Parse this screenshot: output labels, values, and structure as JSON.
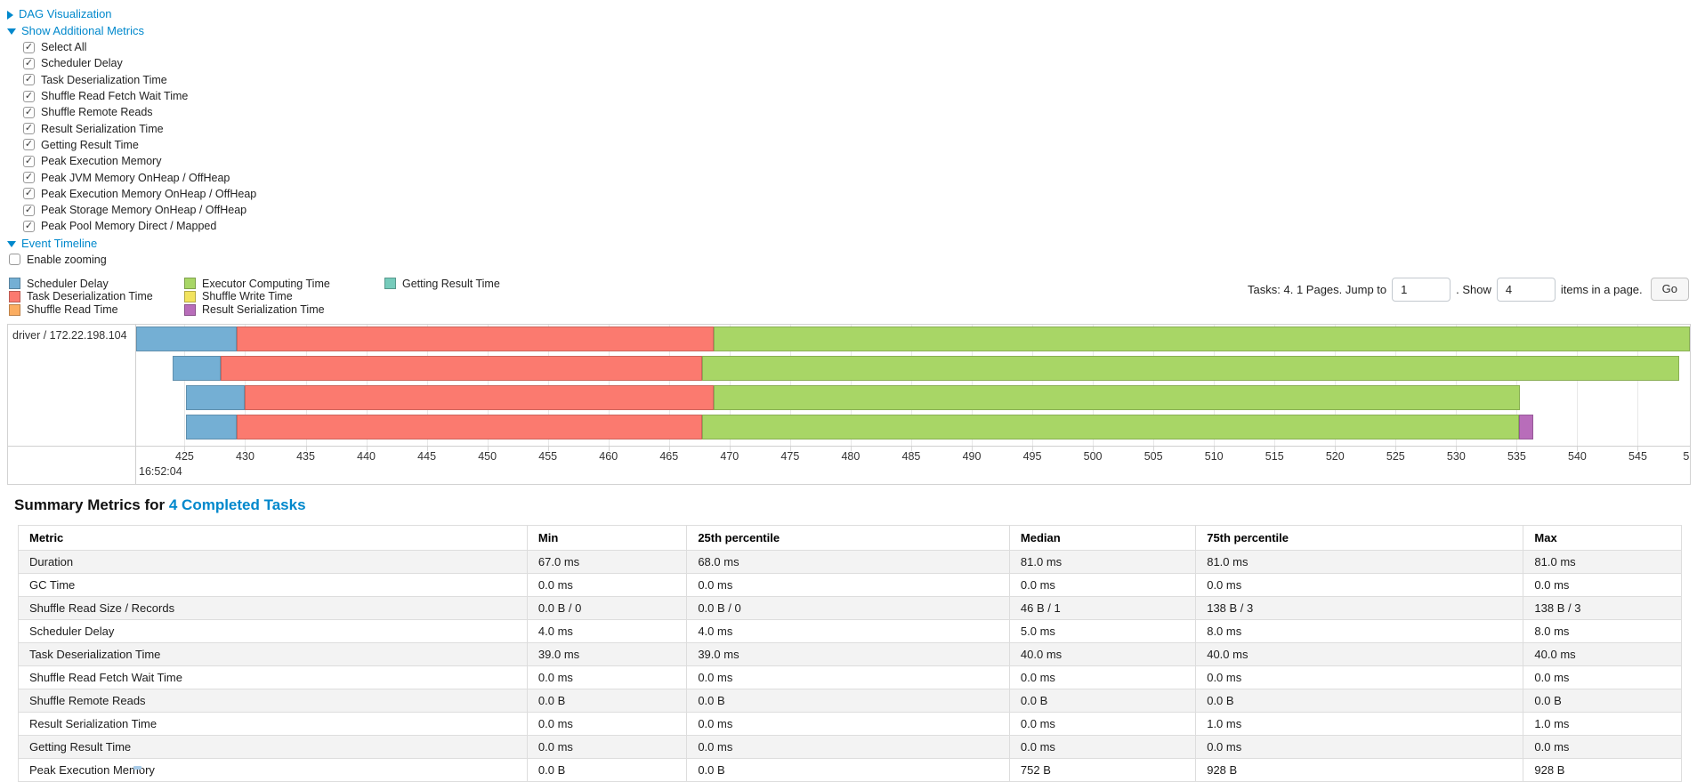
{
  "controls": {
    "dag": {
      "label": "DAG Visualization",
      "state": "collapsed"
    },
    "additional_metrics": {
      "label": "Show Additional Metrics",
      "state": "expanded"
    },
    "metric_checkboxes": [
      "Select All",
      "Scheduler Delay",
      "Task Deserialization Time",
      "Shuffle Read Fetch Wait Time",
      "Shuffle Remote Reads",
      "Result Serialization Time",
      "Getting Result Time",
      "Peak Execution Memory",
      "Peak JVM Memory OnHeap / OffHeap",
      "Peak Execution Memory OnHeap / OffHeap",
      "Peak Storage Memory OnHeap / OffHeap",
      "Peak Pool Memory Direct / Mapped"
    ],
    "event_timeline": {
      "label": "Event Timeline",
      "state": "expanded"
    },
    "enable_zooming": {
      "label": "Enable zooming",
      "checked": false
    }
  },
  "pagination": {
    "prefix": "Tasks: 4. 1 Pages. Jump to",
    "jump_value": "1",
    "mid": ". Show",
    "show_value": "4",
    "suffix": "items in a page.",
    "go_label": "Go"
  },
  "colors": {
    "link": "#0088cc",
    "series": {
      "scheduler_delay": "#74AFD4",
      "task_deserialization": "#FB7A6F",
      "shuffle_read": "#FBAD61",
      "executor_computing": "#A8D666",
      "shuffle_write": "#F2E35E",
      "result_serialization": "#B86DBA",
      "getting_result": "#76CBBB"
    }
  },
  "chart_data": {
    "type": "timeline-gantt",
    "executor_label": "driver / 172.22.198.104",
    "legend_columns": [
      [
        {
          "key": "scheduler_delay",
          "label": "Scheduler Delay"
        },
        {
          "key": "task_deserialization",
          "label": "Task Deserialization Time"
        },
        {
          "key": "shuffle_read",
          "label": "Shuffle Read Time"
        }
      ],
      [
        {
          "key": "executor_computing",
          "label": "Executor Computing Time"
        },
        {
          "key": "shuffle_write",
          "label": "Shuffle Write Time"
        },
        {
          "key": "result_serialization",
          "label": "Result Serialization Time"
        }
      ],
      [
        {
          "key": "getting_result",
          "label": "Getting Result Time"
        }
      ]
    ],
    "x_axis": {
      "time_label": "16:52:04",
      "domain": [
        421.0,
        549.3
      ],
      "ticks": [
        425,
        430,
        435,
        440,
        445,
        450,
        455,
        460,
        465,
        470,
        475,
        480,
        485,
        490,
        495,
        500,
        505,
        510,
        515,
        520,
        525,
        530,
        535,
        540,
        545
      ],
      "edge_tick": {
        "value": 549.0,
        "label": "5"
      }
    },
    "row_layout": {
      "tops": [
        2,
        35,
        68,
        101
      ],
      "height": 28
    },
    "tasks": [
      {
        "segments": [
          [
            "scheduler_delay",
            421.0,
            429.3
          ],
          [
            "task_deserialization",
            429.3,
            468.7
          ],
          [
            "executor_computing",
            468.7,
            549.3
          ]
        ]
      },
      {
        "segments": [
          [
            "scheduler_delay",
            424.0,
            428.0
          ],
          [
            "task_deserialization",
            428.0,
            467.7
          ],
          [
            "executor_computing",
            467.7,
            548.4
          ]
        ]
      },
      {
        "segments": [
          [
            "scheduler_delay",
            425.1,
            430.0
          ],
          [
            "task_deserialization",
            430.0,
            468.7
          ],
          [
            "executor_computing",
            468.7,
            535.3
          ]
        ]
      },
      {
        "segments": [
          [
            "scheduler_delay",
            425.1,
            429.3
          ],
          [
            "task_deserialization",
            429.3,
            467.7
          ],
          [
            "executor_computing",
            467.7,
            535.2
          ],
          [
            "result_serialization",
            535.2,
            536.4
          ]
        ]
      }
    ]
  },
  "summary": {
    "title_prefix": "Summary Metrics for",
    "title_link": "4 Completed Tasks",
    "columns": [
      "Metric",
      "Min",
      "25th percentile",
      "Median",
      "75th percentile",
      "Max"
    ],
    "col_widths_pct": [
      30.6,
      9.6,
      19.4,
      11.2,
      19.7,
      9.5
    ],
    "rows": [
      [
        "Duration",
        "67.0 ms",
        "68.0 ms",
        "81.0 ms",
        "81.0 ms",
        "81.0 ms"
      ],
      [
        "GC Time",
        "0.0 ms",
        "0.0 ms",
        "0.0 ms",
        "0.0 ms",
        "0.0 ms"
      ],
      [
        "Shuffle Read Size / Records",
        "0.0 B / 0",
        "0.0 B / 0",
        "46 B / 1",
        "138 B / 3",
        "138 B / 3"
      ],
      [
        "Scheduler Delay",
        "4.0 ms",
        "4.0 ms",
        "5.0 ms",
        "8.0 ms",
        "8.0 ms"
      ],
      [
        "Task Deserialization Time",
        "39.0 ms",
        "39.0 ms",
        "40.0 ms",
        "40.0 ms",
        "40.0 ms"
      ],
      [
        "Shuffle Read Fetch Wait Time",
        "0.0 ms",
        "0.0 ms",
        "0.0 ms",
        "0.0 ms",
        "0.0 ms"
      ],
      [
        "Shuffle Remote Reads",
        "0.0 B",
        "0.0 B",
        "0.0 B",
        "0.0 B",
        "0.0 B"
      ],
      [
        "Result Serialization Time",
        "0.0 ms",
        "0.0 ms",
        "0.0 ms",
        "1.0 ms",
        "1.0 ms"
      ],
      [
        "Getting Result Time",
        "0.0 ms",
        "0.0 ms",
        "0.0 ms",
        "0.0 ms",
        "0.0 ms"
      ],
      [
        "Peak Execution Memory",
        "0.0 B",
        "0.0 B",
        "752 B",
        "928 B",
        "928 B"
      ]
    ]
  }
}
